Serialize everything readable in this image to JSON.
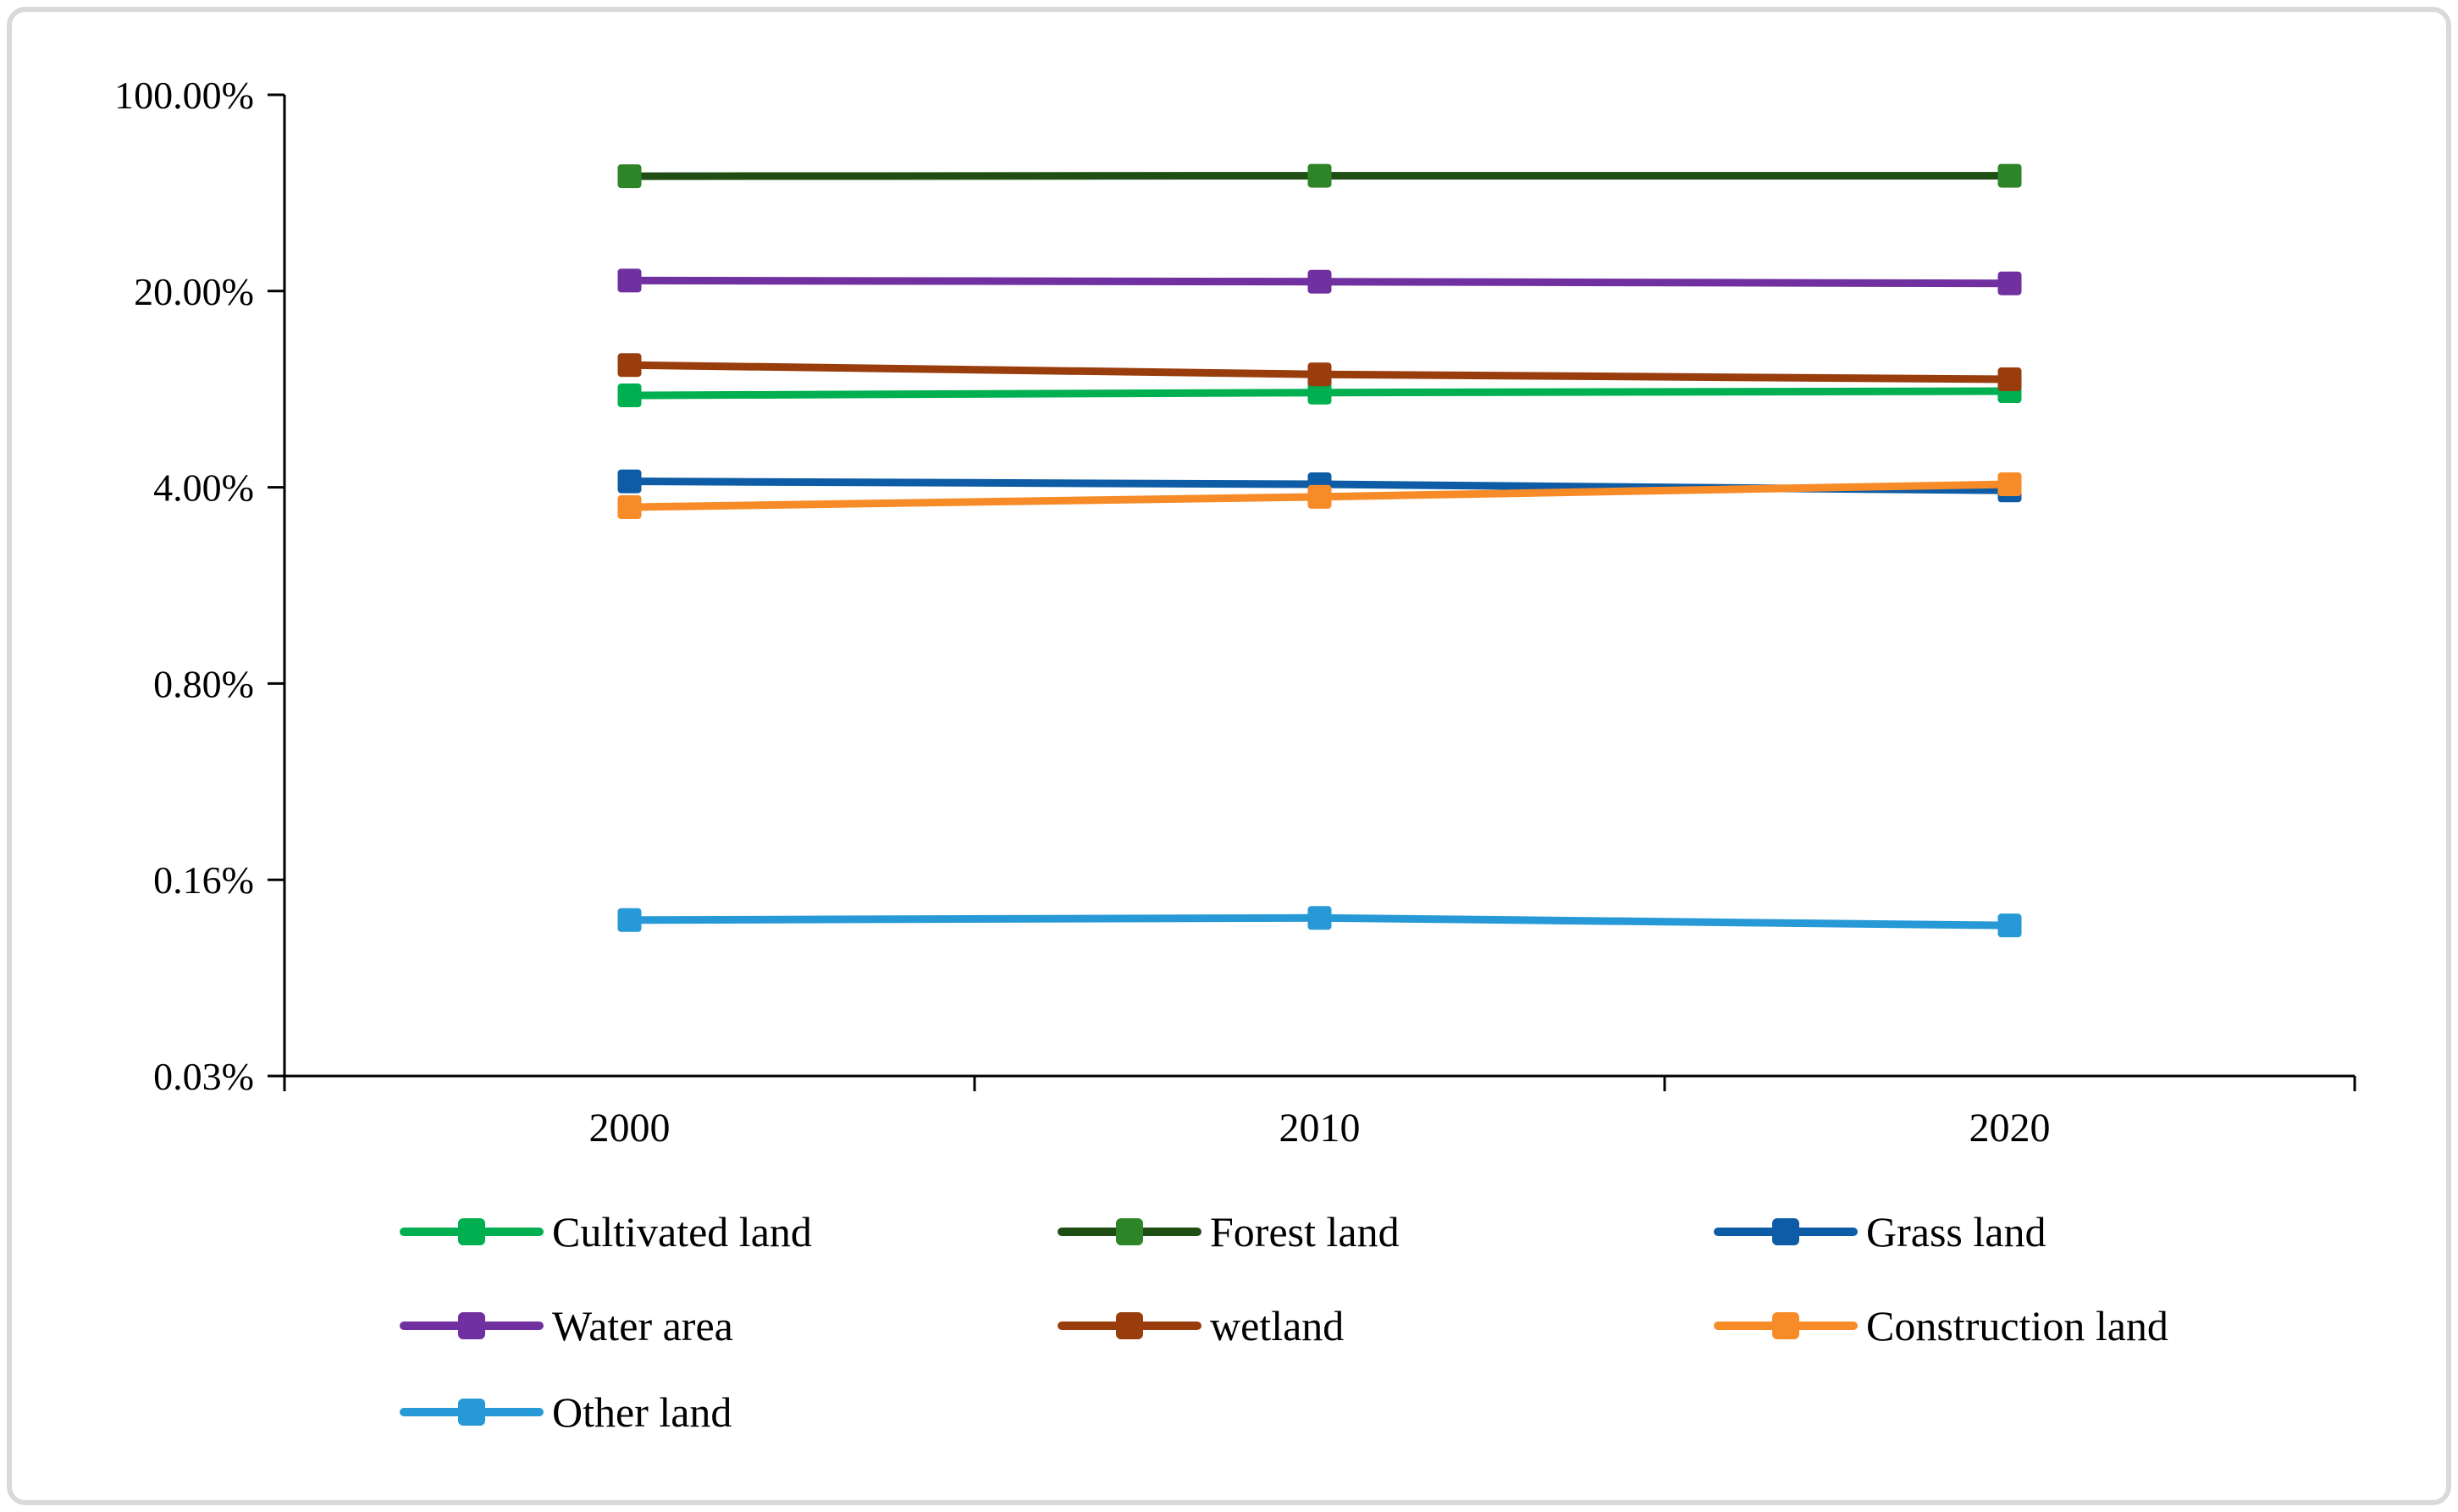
{
  "figure": {
    "border_color": "#d9d9d9",
    "background_color": "#ffffff",
    "axis_color": "#000000",
    "text_color": "#000000"
  },
  "chart_data": {
    "type": "line",
    "title": "",
    "xlabel": "",
    "ylabel": "",
    "grid": false,
    "legend_position": "bottom",
    "categories": [
      "2000",
      "2010",
      "2020"
    ],
    "y_axis": {
      "scale": "log",
      "unit": "%",
      "tick_labels": [
        "100.00%",
        "20.00%",
        "4.00%",
        "0.80%",
        "0.16%",
        "0.03%"
      ],
      "tick_values": [
        100,
        20,
        4,
        0.8,
        0.16,
        0.032
      ],
      "ylim_top": 100,
      "ylim_bottom": 0.032
    },
    "series": [
      {
        "name": "Cultivated land",
        "color": "#00b050",
        "marker_color": "#00b050",
        "values": [
          8.5,
          8.7,
          8.8
        ]
      },
      {
        "name": "Forest land",
        "color": "#1f4e14",
        "marker_color": "#2e8528",
        "values": [
          51.3,
          51.5,
          51.5
        ]
      },
      {
        "name": "Grass land",
        "color": "#0e5ca5",
        "marker_color": "#0e5ca5",
        "values": [
          4.2,
          4.1,
          3.9
        ]
      },
      {
        "name": "Water area",
        "color": "#7030a0",
        "marker_color": "#7030a0",
        "values": [
          21.8,
          21.6,
          21.3
        ]
      },
      {
        "name": "wetland",
        "color": "#9a3d0d",
        "marker_color": "#9a3d0d",
        "values": [
          10.9,
          10.1,
          9.7
        ]
      },
      {
        "name": "Construction land",
        "color": "#f78b28",
        "marker_color": "#f78b28",
        "values": [
          3.4,
          3.7,
          4.1
        ]
      },
      {
        "name": "Other land",
        "color": "#2699d6",
        "marker_color": "#2699d6",
        "values": [
          0.115,
          0.117,
          0.11
        ]
      }
    ],
    "legend_order": [
      "Cultivated land",
      "Forest land",
      "Grass land",
      "Water area",
      "wetland",
      "Construction land",
      "Other land"
    ]
  }
}
